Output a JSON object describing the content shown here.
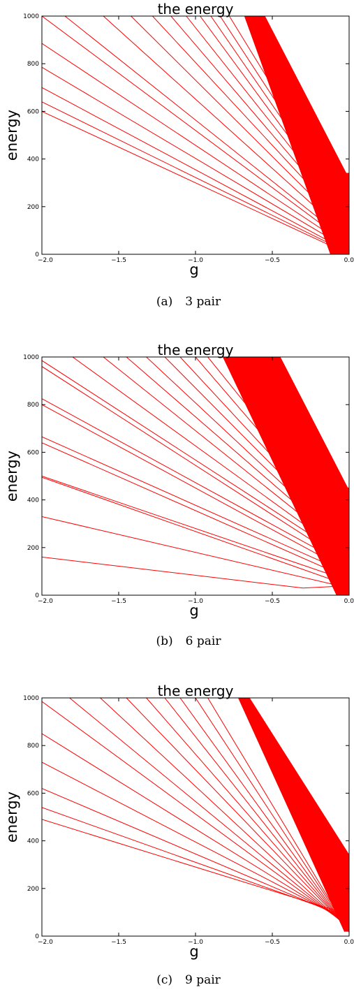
{
  "figure": {
    "panels": [
      {
        "caption_tag": "(a)",
        "caption_text": "3 pair",
        "chart_data": {
          "type": "line",
          "title": "the energy",
          "xlabel": "g",
          "ylabel": "energy",
          "xlim": [
            -2.0,
            0.0
          ],
          "ylim": [
            0,
            1000
          ],
          "xticks": [
            "−2.0",
            "−1.5",
            "−1.0",
            "−0.5",
            "0.0"
          ],
          "yticks": [
            "0",
            "200",
            "400",
            "600",
            "800",
            "1000"
          ],
          "grid": false,
          "line_color": "#ff0000",
          "series": [
            {
              "x": [
                -2.0,
                0.0
              ],
              "y": [
                600,
                0
              ]
            },
            {
              "x": [
                -2.0,
                0.0
              ],
              "y": [
                640,
                5
              ]
            },
            {
              "x": [
                -2.0,
                0.0
              ],
              "y": [
                700,
                10
              ]
            },
            {
              "x": [
                -2.0,
                0.0
              ],
              "y": [
                785,
                20
              ]
            },
            {
              "x": [
                -2.0,
                0.0
              ],
              "y": [
                885,
                30
              ]
            },
            {
              "x": [
                -2.0,
                0.0
              ],
              "y": [
                1000,
                40
              ]
            },
            {
              "x": [
                -1.85,
                0.0
              ],
              "y": [
                1000,
                50
              ]
            },
            {
              "x": [
                -1.6,
                0.0
              ],
              "y": [
                1000,
                70
              ]
            },
            {
              "x": [
                -1.42,
                0.0
              ],
              "y": [
                1000,
                90
              ]
            },
            {
              "x": [
                -1.28,
                0.0
              ],
              "y": [
                1000,
                110
              ]
            },
            {
              "x": [
                -1.16,
                0.0
              ],
              "y": [
                1000,
                125
              ]
            },
            {
              "x": [
                -1.06,
                0.0
              ],
              "y": [
                1000,
                140
              ]
            },
            {
              "x": [
                -0.97,
                0.0
              ],
              "y": [
                1000,
                150
              ]
            },
            {
              "x": [
                -0.9,
                0.0
              ],
              "y": [
                1000,
                160
              ]
            },
            {
              "x": [
                -0.84,
                0.0
              ],
              "y": [
                1000,
                170
              ]
            },
            {
              "x": [
                -0.78,
                0.0
              ],
              "y": [
                1000,
                180
              ]
            }
          ],
          "bands": [
            {
              "x_left_top": -0.68,
              "x_right_top": -0.55,
              "y_top": 1000,
              "x_bottom": [
                -0.12,
                -0.02
              ],
              "y_bottom": [
                0,
                340
              ]
            }
          ]
        }
      },
      {
        "caption_tag": "(b)",
        "caption_text": "6 pair",
        "chart_data": {
          "type": "line",
          "title": "the energy",
          "xlabel": "g",
          "ylabel": "energy",
          "xlim": [
            -2.0,
            0.0
          ],
          "ylim": [
            0,
            1000
          ],
          "xticks": [
            "−2.0",
            "−1.5",
            "−1.0",
            "−0.5",
            "0.0"
          ],
          "yticks": [
            "0",
            "200",
            "400",
            "600",
            "800",
            "1000"
          ],
          "grid": false,
          "line_color": "#ff0000",
          "series": [
            {
              "x": [
                -2.0,
                -0.3,
                0.0
              ],
              "y": [
                160,
                30,
                40
              ]
            },
            {
              "x": [
                -2.0,
                0.0
              ],
              "y": [
                330,
                30
              ]
            },
            {
              "x": [
                -2.0,
                0.0
              ],
              "y": [
                495,
                40
              ]
            },
            {
              "x": [
                -2.0,
                0.0
              ],
              "y": [
                500,
                60
              ]
            },
            {
              "x": [
                -2.0,
                0.0
              ],
              "y": [
                640,
                70
              ]
            },
            {
              "x": [
                -2.0,
                0.0
              ],
              "y": [
                665,
                90
              ]
            },
            {
              "x": [
                -2.0,
                0.0
              ],
              "y": [
                800,
                100
              ]
            },
            {
              "x": [
                -2.0,
                0.0
              ],
              "y": [
                825,
                120
              ]
            },
            {
              "x": [
                -2.0,
                0.0
              ],
              "y": [
                960,
                130
              ]
            },
            {
              "x": [
                -2.0,
                0.0
              ],
              "y": [
                985,
                150
              ]
            },
            {
              "x": [
                -1.8,
                0.0
              ],
              "y": [
                1000,
                160
              ]
            },
            {
              "x": [
                -1.6,
                0.0
              ],
              "y": [
                1000,
                175
              ]
            },
            {
              "x": [
                -1.45,
                0.0
              ],
              "y": [
                1000,
                190
              ]
            },
            {
              "x": [
                -1.32,
                0.0
              ],
              "y": [
                1000,
                205
              ]
            },
            {
              "x": [
                -1.2,
                0.0
              ],
              "y": [
                1000,
                220
              ]
            },
            {
              "x": [
                -1.1,
                0.0
              ],
              "y": [
                1000,
                235
              ]
            },
            {
              "x": [
                -1.0,
                0.0
              ],
              "y": [
                1000,
                250
              ]
            },
            {
              "x": [
                -0.92,
                0.0
              ],
              "y": [
                1000,
                265
              ]
            }
          ],
          "bands": [
            {
              "x_left_top": -0.82,
              "x_right_top": -0.45,
              "y_top": 1000,
              "x_bottom": [
                -0.08,
                -0.01
              ],
              "y_bottom": [
                0,
                450
              ]
            }
          ]
        }
      },
      {
        "caption_tag": "(c)",
        "caption_text": "9 pair",
        "chart_data": {
          "type": "line",
          "title": "the energy",
          "xlabel": "g",
          "ylabel": "energy",
          "xlim": [
            -2.0,
            0.0
          ],
          "ylim": [
            0,
            1000
          ],
          "xticks": [
            "−2.0",
            "−1.5",
            "−1.0",
            "−0.5",
            "0.0"
          ],
          "yticks": [
            "0",
            "200",
            "400",
            "600",
            "800",
            "1000"
          ],
          "grid": false,
          "line_color": "#ff0000",
          "series": [
            {
              "x": [
                -2.0,
                0.0
              ],
              "y": [
                490,
                90
              ]
            },
            {
              "x": [
                -2.0,
                0.0
              ],
              "y": [
                540,
                80
              ]
            },
            {
              "x": [
                -2.0,
                0.0
              ],
              "y": [
                620,
                70
              ]
            },
            {
              "x": [
                -2.0,
                0.0
              ],
              "y": [
                730,
                60
              ]
            },
            {
              "x": [
                -2.0,
                0.0
              ],
              "y": [
                850,
                50
              ]
            },
            {
              "x": [
                -2.0,
                0.0
              ],
              "y": [
                985,
                40
              ]
            },
            {
              "x": [
                -1.82,
                0.0
              ],
              "y": [
                1000,
                35
              ]
            },
            {
              "x": [
                -1.62,
                0.0
              ],
              "y": [
                1000,
                30
              ]
            },
            {
              "x": [
                -1.45,
                0.0
              ],
              "y": [
                1000,
                28
              ]
            },
            {
              "x": [
                -1.32,
                0.0
              ],
              "y": [
                1000,
                25
              ]
            },
            {
              "x": [
                -1.2,
                0.0
              ],
              "y": [
                1000,
                22
              ]
            },
            {
              "x": [
                -1.1,
                0.0
              ],
              "y": [
                1000,
                20
              ]
            },
            {
              "x": [
                -1.0,
                0.0
              ],
              "y": [
                1000,
                18
              ]
            },
            {
              "x": [
                -0.92,
                0.0
              ],
              "y": [
                1000,
                16
              ]
            }
          ],
          "bands": [
            {
              "x_left_top": -0.72,
              "x_right_top": -0.65,
              "y_top": 1000,
              "x_bottom": [
                -0.03,
                -0.0
              ],
              "y_bottom": [
                20,
                340
              ]
            }
          ]
        }
      }
    ]
  }
}
